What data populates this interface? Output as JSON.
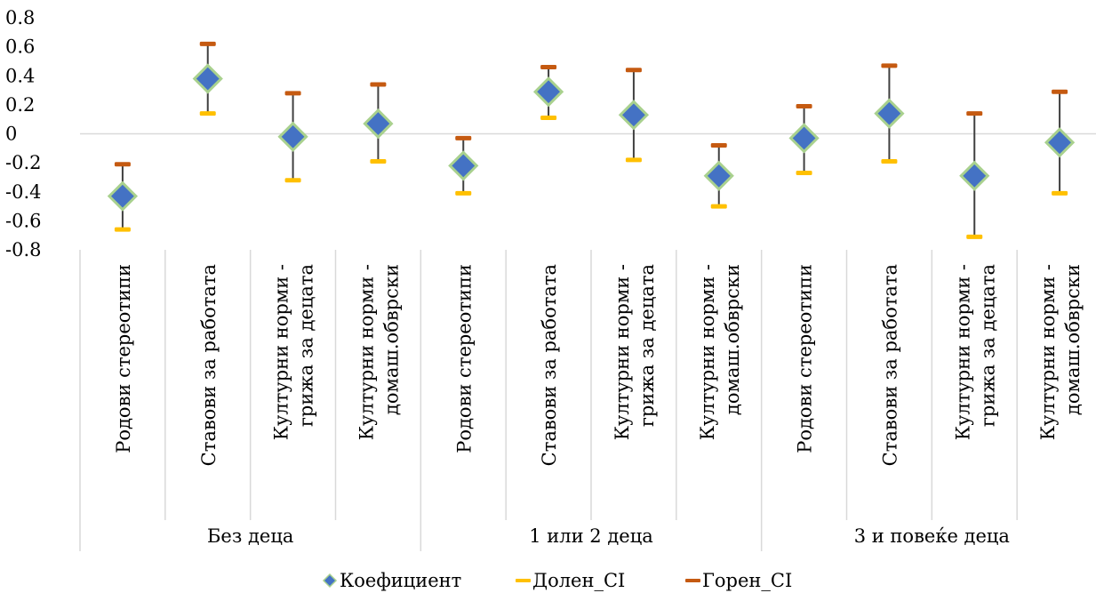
{
  "chart_data": {
    "type": "scatter",
    "title": "",
    "xlabel": "",
    "ylabel": "",
    "ylim": [
      -0.8,
      0.8
    ],
    "yticks": [
      "0.8",
      "0.6",
      "0.4",
      "0.2",
      "0",
      "-0.2",
      "-0.4",
      "-0.6",
      "-0.8"
    ],
    "ytick_values": [
      0.8,
      0.6,
      0.4,
      0.2,
      0,
      -0.2,
      -0.4,
      -0.6,
      -0.8
    ],
    "grid": false,
    "legend_position": "bottom",
    "groups": [
      {
        "label": "Без деца",
        "categories": [
          [
            "Родови стереотипи"
          ],
          [
            "Ставови за работата"
          ],
          [
            "Културни норми -",
            "грижа за децата"
          ],
          [
            "Културни норми -",
            "домаш.обврски"
          ]
        ]
      },
      {
        "label": "1 или 2 деца",
        "categories": [
          [
            "Родови стереотипи"
          ],
          [
            "Ставови за работата"
          ],
          [
            "Културни норми -",
            "грижа за децата"
          ],
          [
            "Културни норми -",
            "домаш.обврски"
          ]
        ]
      },
      {
        "label": "3 и повеќе деца",
        "categories": [
          [
            "Родови стереотипи"
          ],
          [
            "Ставови за работата"
          ],
          [
            "Културни норми -",
            "грижа за децата"
          ],
          [
            "Културни норми -",
            "домаш.обврски"
          ]
        ]
      }
    ],
    "series": [
      {
        "name": "Коефициент",
        "marker": "diamond",
        "color": "#4472C4",
        "edge_color": "#A9D18E",
        "values": [
          -0.43,
          0.38,
          -0.02,
          0.07,
          -0.22,
          0.29,
          0.13,
          -0.29,
          -0.03,
          0.14,
          -0.29,
          -0.06
        ]
      },
      {
        "name": "Долен_CI",
        "marker": "dash",
        "color": "#FFC000",
        "values": [
          -0.66,
          0.14,
          -0.32,
          -0.19,
          -0.41,
          0.11,
          -0.18,
          -0.5,
          -0.27,
          -0.19,
          -0.71,
          -0.41
        ]
      },
      {
        "name": "Горен_CI",
        "marker": "dash",
        "color": "#C55A11",
        "values": [
          -0.21,
          0.62,
          0.28,
          0.34,
          -0.03,
          0.46,
          0.44,
          -0.08,
          0.19,
          0.47,
          0.14,
          0.29
        ]
      }
    ],
    "errorbar_color": "#404040",
    "axis_color": "#D9D9D9"
  }
}
